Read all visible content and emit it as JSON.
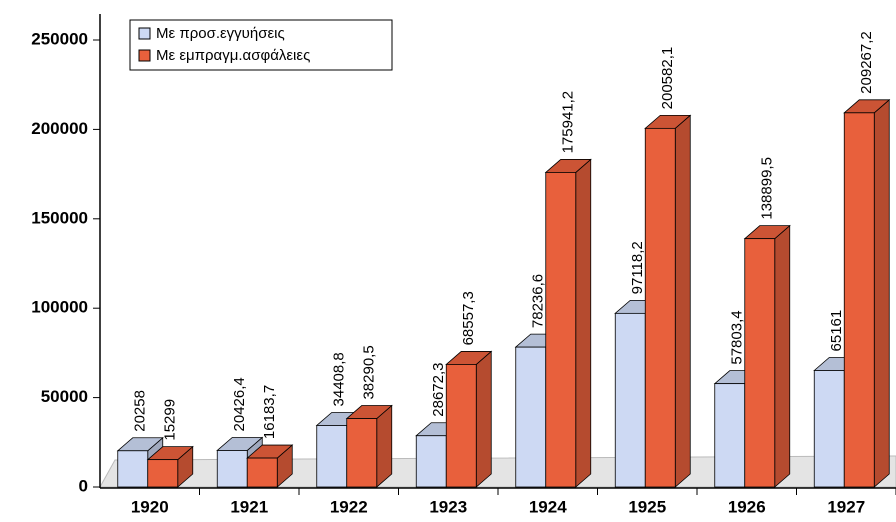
{
  "chart_data": {
    "type": "bar3d",
    "categories": [
      "1920",
      "1921",
      "1922",
      "1923",
      "1924",
      "1925",
      "1926",
      "1927"
    ],
    "series": [
      {
        "name": "Με προσ.εγγυήσεις",
        "color": "#cdd9f3",
        "values": [
          20258,
          20426.4,
          34408.8,
          28672.3,
          78236.6,
          97118.2,
          57803.4,
          65161
        ],
        "value_labels": [
          "20258",
          "20426,4",
          "34408,8",
          "28672,3",
          "78236,6",
          "97118,2",
          "57803,4",
          "65161"
        ]
      },
      {
        "name": "Με εμπραγμ.ασφάλειες",
        "color": "#e8603c",
        "values": [
          15299,
          16183.7,
          38290.5,
          68557.3,
          175941.2,
          200582.1,
          138899.5,
          209267.2
        ],
        "value_labels": [
          "15299",
          "16183,7",
          "38290,5",
          "68557,3",
          "175941,2",
          "200582,1",
          "138899,5",
          "209267,2"
        ]
      }
    ],
    "ylim": [
      0,
      250000
    ],
    "yticks": [
      0,
      50000,
      100000,
      150000,
      200000,
      250000
    ],
    "grid": false,
    "legend": "top-left"
  }
}
